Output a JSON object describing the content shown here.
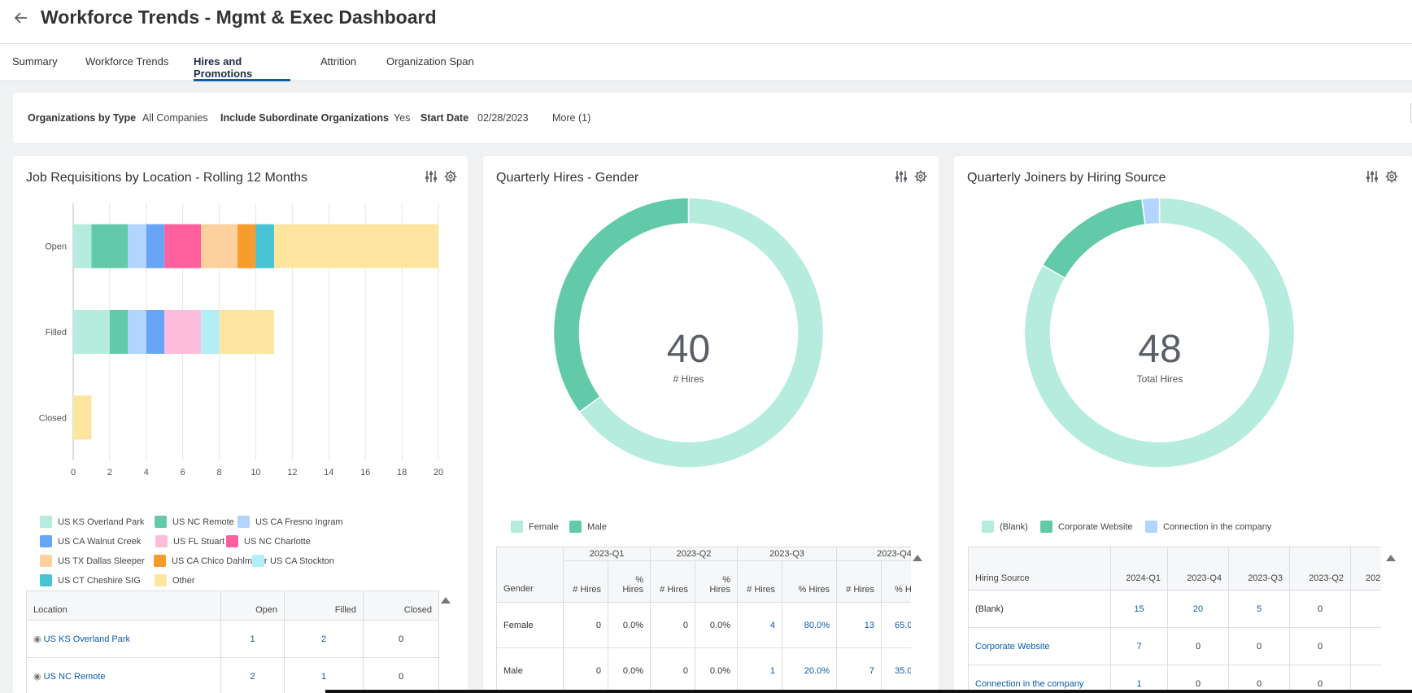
{
  "header": {
    "title": "Workforce Trends - Mgmt & Exec Dashboard",
    "back_icon": "arrow-left-icon"
  },
  "tabs": [
    {
      "label": "Summary"
    },
    {
      "label": "Workforce Trends"
    },
    {
      "label": "Hires and Promotions",
      "active": true
    },
    {
      "label": "Attrition"
    },
    {
      "label": "Organization Span"
    }
  ],
  "filters": {
    "org_type_label": "Organizations by Type",
    "org_type_value": "All Companies",
    "subord_label": "Include Subordinate Organizations",
    "subord_value": "Yes",
    "start_label": "Start Date",
    "start_value": "02/28/2023",
    "more": "More (1)"
  },
  "cards": {
    "requisitions": {
      "title": "Job Requisitions by Location - Rolling 12 Months",
      "table": {
        "headers": [
          "Location",
          "Open",
          "Filled",
          "Closed"
        ],
        "rows": [
          [
            "US KS Overland Park",
            "1",
            "2",
            "0"
          ],
          [
            "US NC Remote",
            "2",
            "1",
            "0"
          ]
        ]
      }
    },
    "gender": {
      "title": "Quarterly Hires - Gender",
      "center_value": "40",
      "center_label": "# Hires",
      "table": {
        "row_header": "Gender",
        "quarters": [
          "2023-Q1",
          "2023-Q2",
          "2023-Q3",
          "2023-Q4"
        ],
        "sub_hires": "# Hires",
        "sub_pct": "% Hires",
        "rows": [
          {
            "label": "Female",
            "vals": [
              "0",
              "0.0%",
              "0",
              "0.0%",
              "4",
              "80.0%",
              "13",
              "65.0"
            ]
          },
          {
            "label": "Male",
            "vals": [
              "0",
              "0.0%",
              "0",
              "0.0%",
              "1",
              "20.0%",
              "7",
              "35.0"
            ]
          }
        ]
      }
    },
    "source": {
      "title": "Quarterly Joiners by Hiring Source",
      "center_value": "48",
      "center_label": "Total Hires",
      "table": {
        "headers": [
          "Hiring Source",
          "2024-Q1",
          "2023-Q4",
          "2023-Q3",
          "2023-Q2",
          "202"
        ],
        "rows": [
          {
            "label": "(Blank)",
            "vals": [
              "15",
              "20",
              "5",
              "0"
            ]
          },
          {
            "label": "Corporate Website",
            "vals": [
              "7",
              "0",
              "0",
              "0"
            ]
          },
          {
            "label": "Connection in the company",
            "vals": [
              "1",
              "0",
              "0",
              "0"
            ]
          }
        ]
      }
    }
  },
  "chart_data": [
    {
      "type": "bar",
      "orientation": "horizontal",
      "stacked": true,
      "title": "Job Requisitions by Location - Rolling 12 Months",
      "categories": [
        "Open",
        "Filled",
        "Closed"
      ],
      "xlim": [
        0,
        20
      ],
      "xticks": [
        0,
        2,
        4,
        6,
        8,
        10,
        12,
        14,
        16,
        18,
        20
      ],
      "series": [
        {
          "name": "US KS Overland Park",
          "color": "#b5ecdd",
          "values": [
            1,
            2,
            0
          ]
        },
        {
          "name": "US NC Remote",
          "color": "#62caa9",
          "values": [
            2,
            1,
            0
          ]
        },
        {
          "name": "US CA Fresno Ingram",
          "color": "#b2d5ff",
          "values": [
            1,
            1,
            0
          ]
        },
        {
          "name": "US CA Walnut Creek",
          "color": "#66a4f6",
          "values": [
            1,
            1,
            0
          ]
        },
        {
          "name": "US FL Stuart",
          "color": "#fdbcd9",
          "values": [
            0,
            2,
            0
          ]
        },
        {
          "name": "US NC Charlotte",
          "color": "#ff5f9d",
          "values": [
            2,
            0,
            0
          ]
        },
        {
          "name": "US TX Dallas Sleeper",
          "color": "#fdd09e",
          "values": [
            2,
            0,
            0
          ]
        },
        {
          "name": "US CA Chico Dahlmeier",
          "color": "#f79b2a",
          "values": [
            1,
            0,
            0
          ]
        },
        {
          "name": "US CA Stockton",
          "color": "#b2eef5",
          "values": [
            0,
            1,
            0
          ]
        },
        {
          "name": "US CT Cheshire SIG",
          "color": "#47c3d4",
          "values": [
            1,
            0,
            0
          ]
        },
        {
          "name": "Other",
          "color": "#fee59f",
          "values": [
            9,
            3,
            1
          ]
        }
      ],
      "legend_position": "bottom"
    },
    {
      "type": "pie",
      "donut": true,
      "title": "Quarterly Hires - Gender",
      "total": 40,
      "total_label": "# Hires",
      "categories": [
        "Female",
        "Male"
      ],
      "values": [
        26,
        14
      ],
      "colors": [
        "#b5ecdd",
        "#62caa9"
      ],
      "legend_position": "bottom"
    },
    {
      "type": "pie",
      "donut": true,
      "title": "Quarterly Joiners by Hiring Source",
      "total": 48,
      "total_label": "Total Hires",
      "categories": [
        "(Blank)",
        "Corporate Website",
        "Connection in the company"
      ],
      "values": [
        40,
        7,
        1
      ],
      "colors": [
        "#b5ecdd",
        "#62caa9",
        "#b2d5ff"
      ],
      "legend_position": "bottom"
    }
  ]
}
